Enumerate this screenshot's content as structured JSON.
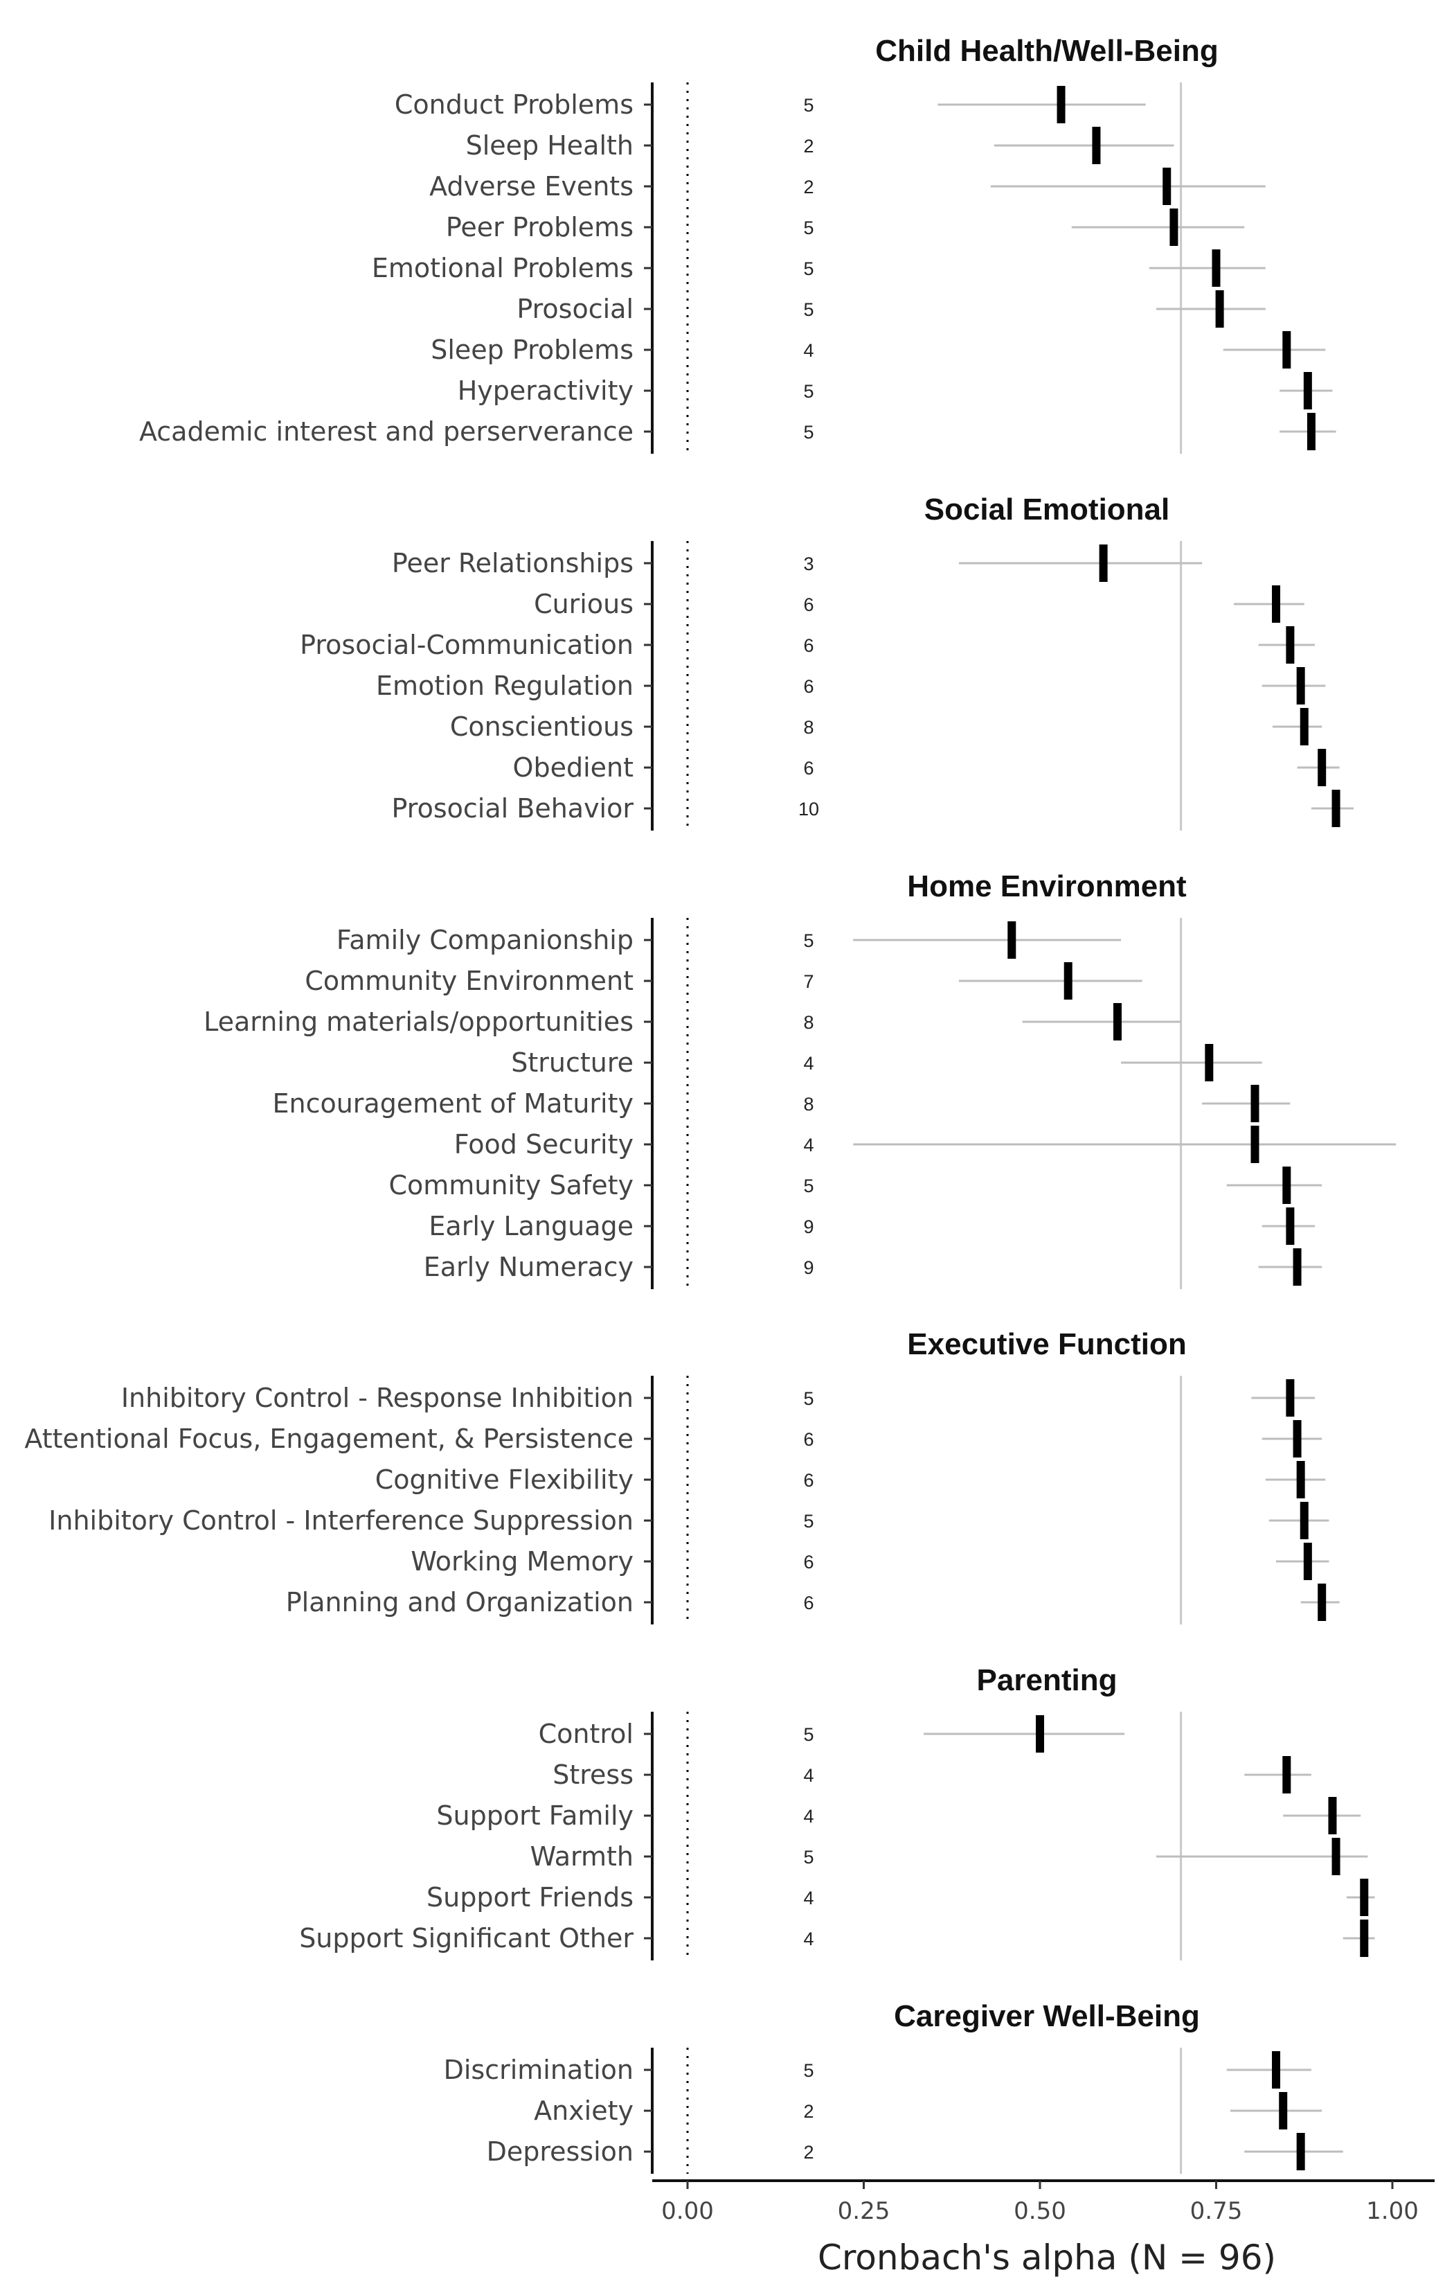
{
  "chart_data": {
    "type": "forest",
    "xlabel": "Cronbach's alpha (N = 96)",
    "xlim": [
      -0.05,
      1.05
    ],
    "xticks": [
      0.0,
      0.25,
      0.5,
      0.75,
      1.0
    ],
    "xtick_labels": [
      "0.00",
      "0.25",
      "0.50",
      "0.75",
      "1.00"
    ],
    "reference_lines": [
      {
        "x": 0.0,
        "style": "dotted",
        "color": "#000000"
      },
      {
        "x": 0.7,
        "style": "solid",
        "color": "#c8c8c8"
      }
    ],
    "colors": {
      "estimate": "#000000",
      "ci": "#bdbdbd",
      "reference": "#c8c8c8"
    },
    "panels": [
      {
        "title": "Child Health/Well-Being",
        "rows": [
          {
            "label": "Conduct Problems",
            "n_items": "5",
            "alpha": 0.53,
            "ci": [
              0.355,
              0.65
            ]
          },
          {
            "label": "Sleep Health",
            "n_items": "2",
            "alpha": 0.58,
            "ci": [
              0.435,
              0.69
            ]
          },
          {
            "label": "Adverse Events",
            "n_items": "2",
            "alpha": 0.68,
            "ci": [
              0.43,
              0.82
            ]
          },
          {
            "label": "Peer Problems",
            "n_items": "5",
            "alpha": 0.69,
            "ci": [
              0.545,
              0.79
            ]
          },
          {
            "label": "Emotional Problems",
            "n_items": "5",
            "alpha": 0.75,
            "ci": [
              0.655,
              0.82
            ]
          },
          {
            "label": "Prosocial",
            "n_items": "5",
            "alpha": 0.755,
            "ci": [
              0.665,
              0.82
            ]
          },
          {
            "label": "Sleep Problems",
            "n_items": "4",
            "alpha": 0.85,
            "ci": [
              0.76,
              0.905
            ]
          },
          {
            "label": "Hyperactivity",
            "n_items": "5",
            "alpha": 0.88,
            "ci": [
              0.84,
              0.915
            ]
          },
          {
            "label": "Academic interest and perserverance",
            "n_items": "5",
            "alpha": 0.885,
            "ci": [
              0.84,
              0.92
            ]
          }
        ]
      },
      {
        "title": "Social Emotional",
        "rows": [
          {
            "label": "Peer Relationships",
            "n_items": "3",
            "alpha": 0.59,
            "ci": [
              0.385,
              0.73
            ]
          },
          {
            "label": "Curious",
            "n_items": "6",
            "alpha": 0.835,
            "ci": [
              0.775,
              0.875
            ]
          },
          {
            "label": "Prosocial-Communication",
            "n_items": "6",
            "alpha": 0.855,
            "ci": [
              0.81,
              0.89
            ]
          },
          {
            "label": "Emotion Regulation",
            "n_items": "6",
            "alpha": 0.87,
            "ci": [
              0.815,
              0.905
            ]
          },
          {
            "label": "Conscientious",
            "n_items": "8",
            "alpha": 0.875,
            "ci": [
              0.83,
              0.9
            ]
          },
          {
            "label": "Obedient",
            "n_items": "6",
            "alpha": 0.9,
            "ci": [
              0.865,
              0.925
            ]
          },
          {
            "label": "Prosocial Behavior",
            "n_items": "10",
            "alpha": 0.92,
            "ci": [
              0.885,
              0.945
            ]
          }
        ]
      },
      {
        "title": "Home Environment",
        "rows": [
          {
            "label": "Family Companionship",
            "n_items": "5",
            "alpha": 0.46,
            "ci": [
              0.235,
              0.615
            ]
          },
          {
            "label": "Community Environment",
            "n_items": "7",
            "alpha": 0.54,
            "ci": [
              0.385,
              0.645
            ]
          },
          {
            "label": "Learning materials/opportunities",
            "n_items": "8",
            "alpha": 0.61,
            "ci": [
              0.475,
              0.7
            ]
          },
          {
            "label": "Structure",
            "n_items": "4",
            "alpha": 0.74,
            "ci": [
              0.615,
              0.815
            ]
          },
          {
            "label": "Encouragement of Maturity",
            "n_items": "8",
            "alpha": 0.805,
            "ci": [
              0.73,
              0.855
            ]
          },
          {
            "label": "Food Security",
            "n_items": "4",
            "alpha": 0.805,
            "ci": [
              0.235,
              1.005
            ]
          },
          {
            "label": "Community Safety",
            "n_items": "5",
            "alpha": 0.85,
            "ci": [
              0.765,
              0.9
            ]
          },
          {
            "label": "Early Language",
            "n_items": "9",
            "alpha": 0.855,
            "ci": [
              0.815,
              0.89
            ]
          },
          {
            "label": "Early Numeracy",
            "n_items": "9",
            "alpha": 0.865,
            "ci": [
              0.81,
              0.9
            ]
          }
        ]
      },
      {
        "title": "Executive Function",
        "rows": [
          {
            "label": "Inhibitory Control - Response Inhibition",
            "n_items": "5",
            "alpha": 0.855,
            "ci": [
              0.8,
              0.89
            ]
          },
          {
            "label": "Attentional Focus, Engagement, & Persistence",
            "n_items": "6",
            "alpha": 0.865,
            "ci": [
              0.815,
              0.9
            ]
          },
          {
            "label": "Cognitive Flexibility",
            "n_items": "6",
            "alpha": 0.87,
            "ci": [
              0.82,
              0.905
            ]
          },
          {
            "label": "Inhibitory Control - Interference Suppression",
            "n_items": "5",
            "alpha": 0.875,
            "ci": [
              0.825,
              0.91
            ]
          },
          {
            "label": "Working Memory",
            "n_items": "6",
            "alpha": 0.88,
            "ci": [
              0.835,
              0.91
            ]
          },
          {
            "label": "Planning and Organization",
            "n_items": "6",
            "alpha": 0.9,
            "ci": [
              0.87,
              0.925
            ]
          }
        ]
      },
      {
        "title": "Parenting",
        "rows": [
          {
            "label": "Control",
            "n_items": "5",
            "alpha": 0.5,
            "ci": [
              0.335,
              0.62
            ]
          },
          {
            "label": "Stress",
            "n_items": "4",
            "alpha": 0.85,
            "ci": [
              0.79,
              0.885
            ]
          },
          {
            "label": "Support Family",
            "n_items": "4",
            "alpha": 0.915,
            "ci": [
              0.845,
              0.955
            ]
          },
          {
            "label": "Warmth",
            "n_items": "5",
            "alpha": 0.92,
            "ci": [
              0.665,
              0.965
            ]
          },
          {
            "label": "Support Friends",
            "n_items": "4",
            "alpha": 0.96,
            "ci": [
              0.935,
              0.975
            ]
          },
          {
            "label": "Support Significant Other",
            "n_items": "4",
            "alpha": 0.96,
            "ci": [
              0.93,
              0.975
            ]
          }
        ]
      },
      {
        "title": "Caregiver Well-Being",
        "rows": [
          {
            "label": "Discrimination",
            "n_items": "5",
            "alpha": 0.835,
            "ci": [
              0.765,
              0.885
            ]
          },
          {
            "label": "Anxiety",
            "n_items": "2",
            "alpha": 0.845,
            "ci": [
              0.77,
              0.9
            ]
          },
          {
            "label": "Depression",
            "n_items": "2",
            "alpha": 0.87,
            "ci": [
              0.79,
              0.93
            ]
          }
        ]
      }
    ]
  }
}
